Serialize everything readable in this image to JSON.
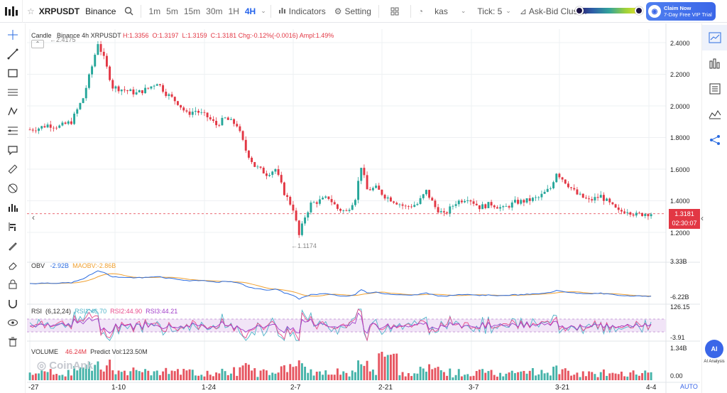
{
  "toolbar": {
    "symbol": "XRPUSDT",
    "exchange": "Binance",
    "timeframes": [
      "1m",
      "5m",
      "15m",
      "30m",
      "1H",
      "4H"
    ],
    "active_timeframe": "4H",
    "indicators_label": "Indicators",
    "setting_label": "Setting",
    "kas_label": "kas",
    "tick_label": "Tick: 5",
    "ask_bid_label": "Ask-Bid Cluster",
    "claim_line1": "Claim Now",
    "claim_line2": "7-Day Free VIP Trial"
  },
  "legend": {
    "candle_label": "Candle",
    "symbol_info": "Binance 4h XRPUSDT",
    "high": "H:1.3356",
    "open": "O:1.3197",
    "low": "L:1.3159",
    "close": "C:1.3181",
    "change": "Chg:-0.12%(-0.0016)",
    "ampl": "Ampl:1.49%",
    "obv_label": "OBV",
    "obv_value": "-2.92B",
    "maobv_label": "MAOBV:",
    "maobv_value": "-2.86B",
    "rsi_label": "RSI",
    "rsi_params": "(6,12,24)",
    "rsi1": "RSI1:46.70",
    "rsi2": "RSI2:44.90",
    "rsi3": "RSI3:44.21",
    "volume_label": "VOLUME",
    "volume_value": "46.24M",
    "predict_vol": "Predict Vol:123.50M"
  },
  "price_axis": [
    "2.4000",
    "2.2000",
    "2.0000",
    "1.8000",
    "1.6000",
    "1.4000",
    "1.2000"
  ],
  "current_price": "1.3181",
  "countdown": "02:30:07",
  "high_marker": "2.4175",
  "low_marker": "1.1174",
  "obv_axis": [
    "3.33B",
    "-6.22B"
  ],
  "rsi_axis": [
    "126.15",
    "-3.91"
  ],
  "volume_axis": [
    "1.34B",
    "0.00"
  ],
  "x_axis": [
    "-27",
    "1-10",
    "1-24",
    "2-7",
    "2-21",
    "3-7",
    "3-21",
    "4-4"
  ],
  "auto_label": "AUTO",
  "ai_label": "AI Analysis",
  "watermark": "CoinAnk",
  "colors": {
    "up": "#26a69a",
    "down": "#e23744",
    "accent": "#2b6ce0"
  },
  "chart_data": {
    "type": "candlestick",
    "x_labels": [
      "-27",
      "1-10",
      "1-24",
      "2-7",
      "2-21",
      "3-7",
      "3-21",
      "4-4"
    ],
    "ylim": [
      1.1,
      2.45
    ],
    "close_path": [
      [
        0,
        1.85
      ],
      [
        3,
        1.86
      ],
      [
        6,
        1.88
      ],
      [
        10,
        1.87
      ],
      [
        14,
        1.9
      ],
      [
        18,
        2.05
      ],
      [
        21,
        2.25
      ],
      [
        23,
        2.4
      ],
      [
        25,
        2.3
      ],
      [
        28,
        2.12
      ],
      [
        32,
        2.1
      ],
      [
        36,
        2.08
      ],
      [
        40,
        2.11
      ],
      [
        43,
        2.15
      ],
      [
        46,
        2.08
      ],
      [
        50,
        2.02
      ],
      [
        53,
        1.95
      ],
      [
        56,
        1.97
      ],
      [
        60,
        1.93
      ],
      [
        63,
        1.88
      ],
      [
        66,
        1.92
      ],
      [
        70,
        1.88
      ],
      [
        73,
        1.72
      ],
      [
        76,
        1.62
      ],
      [
        80,
        1.57
      ],
      [
        83,
        1.6
      ],
      [
        86,
        1.45
      ],
      [
        89,
        1.35
      ],
      [
        91,
        1.18
      ],
      [
        93,
        1.3
      ],
      [
        95,
        1.38
      ],
      [
        98,
        1.4
      ],
      [
        101,
        1.42
      ],
      [
        104,
        1.35
      ],
      [
        107,
        1.33
      ],
      [
        110,
        1.42
      ],
      [
        112,
        1.62
      ],
      [
        114,
        1.47
      ],
      [
        117,
        1.48
      ],
      [
        120,
        1.43
      ],
      [
        123,
        1.4
      ],
      [
        127,
        1.36
      ],
      [
        131,
        1.38
      ],
      [
        134,
        1.46
      ],
      [
        137,
        1.36
      ],
      [
        140,
        1.31
      ],
      [
        144,
        1.39
      ],
      [
        148,
        1.42
      ],
      [
        152,
        1.36
      ],
      [
        156,
        1.38
      ],
      [
        160,
        1.35
      ],
      [
        164,
        1.39
      ],
      [
        168,
        1.4
      ],
      [
        172,
        1.42
      ],
      [
        176,
        1.48
      ],
      [
        178,
        1.58
      ],
      [
        181,
        1.52
      ],
      [
        185,
        1.44
      ],
      [
        189,
        1.4
      ],
      [
        193,
        1.43
      ],
      [
        196,
        1.38
      ],
      [
        199,
        1.33
      ],
      [
        202,
        1.34
      ],
      [
        205,
        1.31
      ],
      [
        208,
        1.32
      ]
    ]
  }
}
